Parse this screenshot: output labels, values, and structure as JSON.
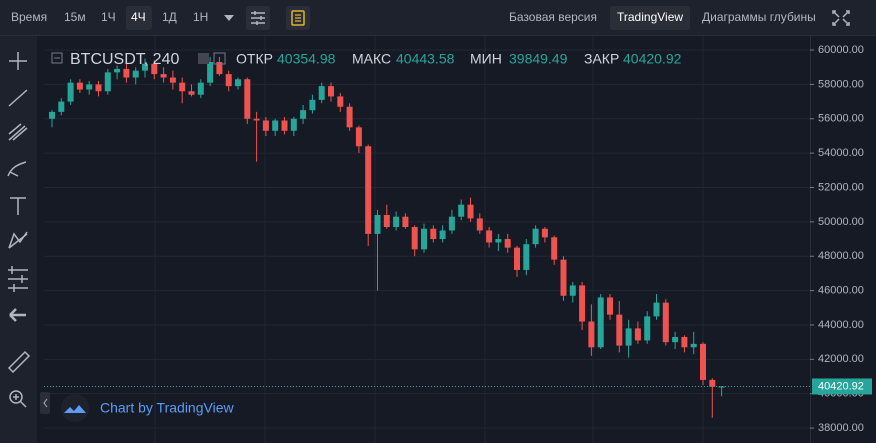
{
  "toolbar": {
    "interval_label": "Время",
    "intervals": [
      "15м",
      "1Ч",
      "4Ч",
      "1Д",
      "1Н"
    ],
    "views": [
      "Базовая версия",
      "TradingView",
      "Диаграммы глубины"
    ]
  },
  "chart_data": {
    "type": "candlestick",
    "title": "BTCUSDT, 240",
    "ohlc_labels": [
      "ОТКР",
      "МАКС",
      "МИН",
      "ЗАКР"
    ],
    "open": [
      56000,
      56400,
      57000,
      58100,
      57700,
      58000,
      57600,
      58700,
      58900,
      58400,
      58800,
      59200,
      58600,
      58400,
      58100,
      57600,
      57400,
      58100,
      59300,
      58600,
      57900,
      58300,
      56000,
      55900,
      55300,
      55900,
      55300,
      56000,
      56500,
      57100,
      57900,
      57300,
      56700,
      55500,
      54400,
      49300,
      50400,
      49700,
      50300,
      49700,
      48400,
      49600,
      49000,
      49500,
      50300,
      51000,
      50200,
      49500,
      48800,
      49000,
      48500,
      47200,
      48700,
      49600,
      49100,
      47800,
      45700,
      46300,
      44200,
      42700,
      45600,
      44600,
      42800,
      43800,
      43100,
      44500,
      45300,
      43000,
      43300,
      42700,
      42900,
      40800,
      40354.98
    ],
    "high": [
      56500,
      57200,
      58300,
      58300,
      58200,
      58200,
      58900,
      59100,
      59200,
      59000,
      59500,
      59400,
      59000,
      58800,
      58400,
      58000,
      58300,
      59600,
      59600,
      58800,
      58400,
      58400,
      56400,
      56100,
      56000,
      56100,
      56100,
      56800,
      57400,
      58100,
      58100,
      57500,
      56900,
      55600,
      54500,
      50700,
      51000,
      50600,
      50500,
      49800,
      49900,
      49800,
      49800,
      50700,
      51300,
      51400,
      50500,
      49700,
      49300,
      49300,
      48600,
      49000,
      49800,
      49700,
      49200,
      48000,
      46500,
      46500,
      45200,
      45800,
      45800,
      45400,
      44300,
      44200,
      44800,
      45800,
      45500,
      43600,
      43400,
      43600,
      43000,
      40900,
      40443.58
    ],
    "low": [
      55500,
      56200,
      56800,
      57500,
      57400,
      57300,
      57400,
      58300,
      58100,
      58000,
      58400,
      58300,
      58100,
      57700,
      56900,
      57300,
      57200,
      57900,
      58500,
      57600,
      57700,
      55700,
      53500,
      55000,
      55000,
      55100,
      55000,
      55700,
      56300,
      56900,
      57000,
      56400,
      55300,
      54000,
      48600,
      46000,
      49600,
      49500,
      49600,
      48000,
      48200,
      48800,
      48800,
      49300,
      50100,
      50000,
      49300,
      48500,
      48300,
      48200,
      46800,
      46900,
      48500,
      48800,
      47500,
      45400,
      45300,
      43700,
      42200,
      42600,
      44300,
      42400,
      42100,
      42900,
      42900,
      44300,
      42800,
      42600,
      42400,
      42300,
      40500,
      38600,
      39849.49
    ],
    "close": [
      56400,
      57000,
      58100,
      57700,
      58000,
      57600,
      58700,
      58900,
      58400,
      58800,
      59200,
      58600,
      58400,
      58100,
      57600,
      57400,
      58100,
      59300,
      58600,
      57900,
      58300,
      56000,
      55900,
      55300,
      55900,
      55300,
      56000,
      56500,
      57100,
      57900,
      57300,
      56700,
      55500,
      54400,
      49300,
      50400,
      49700,
      50300,
      49700,
      48400,
      49600,
      49000,
      49500,
      50300,
      51000,
      50200,
      49500,
      48800,
      49000,
      48500,
      47200,
      48700,
      49600,
      49100,
      47800,
      45700,
      46300,
      44200,
      42700,
      45600,
      44600,
      42800,
      43800,
      43100,
      44500,
      45300,
      43000,
      43300,
      42700,
      42900,
      40800,
      40400,
      40420.92
    ],
    "up_color": "#26a69a",
    "down_color": "#ef5350",
    "ylim": [
      37130,
      60700
    ],
    "yticks": [
      {
        "value": 60000,
        "label": "60000.00"
      },
      {
        "value": 58000,
        "label": "58000.00"
      },
      {
        "value": 56000,
        "label": "56000.00"
      },
      {
        "value": 54000,
        "label": "54000.00"
      },
      {
        "value": 52000,
        "label": "52000.00"
      },
      {
        "value": 50000,
        "label": "50000.00"
      },
      {
        "value": 48000,
        "label": "48000.00"
      },
      {
        "value": 46000,
        "label": "46000.00"
      },
      {
        "value": 44000,
        "label": "44000.00"
      },
      {
        "value": 42000,
        "label": "42000.00"
      },
      {
        "value": 40000,
        "label": "40000.00"
      },
      {
        "value": 38000,
        "label": "38000.00"
      }
    ],
    "grid": true,
    "watermark": "Chart by TradingView"
  }
}
